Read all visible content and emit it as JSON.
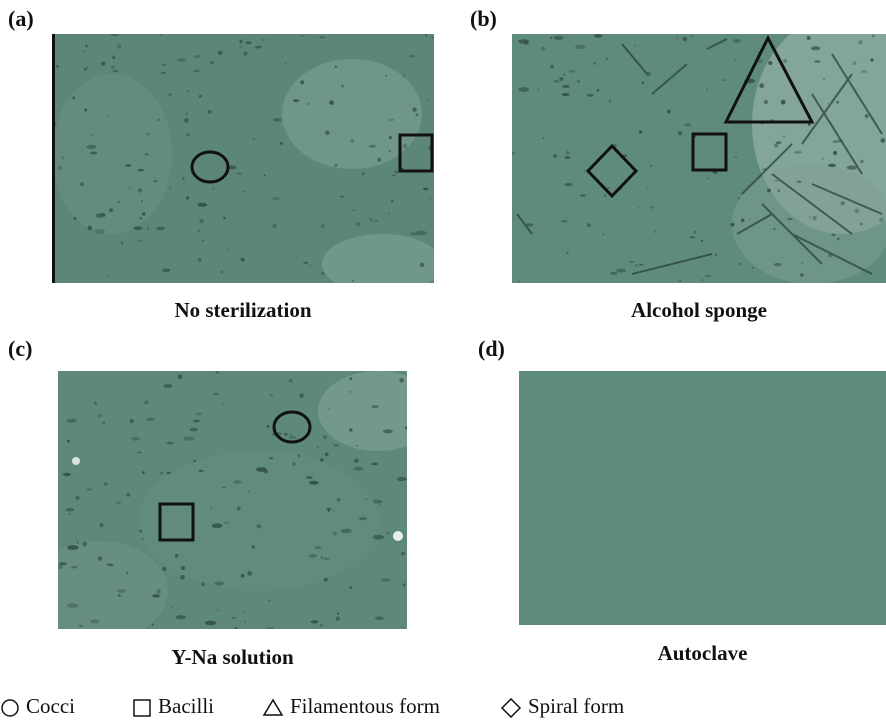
{
  "panels": [
    {
      "label": "(a)",
      "caption": "No sterilization"
    },
    {
      "label": "(b)",
      "caption": "Alcohol sponge"
    },
    {
      "label": "(c)",
      "caption": "Y-Na solution"
    },
    {
      "label": "(d)",
      "caption": "Autoclave"
    }
  ],
  "legend": [
    {
      "symbol": "circle-icon",
      "label": "Cocci"
    },
    {
      "symbol": "square-icon",
      "label": "Bacilli"
    },
    {
      "symbol": "triangle-icon",
      "label": "Filamentous form"
    },
    {
      "symbol": "diamond-icon",
      "label": "Spiral form"
    }
  ],
  "colors": {
    "micrograph_base": "#5f8a7b",
    "micrograph_dark": "#4a7566",
    "autoclave": "#5e8b7d"
  }
}
